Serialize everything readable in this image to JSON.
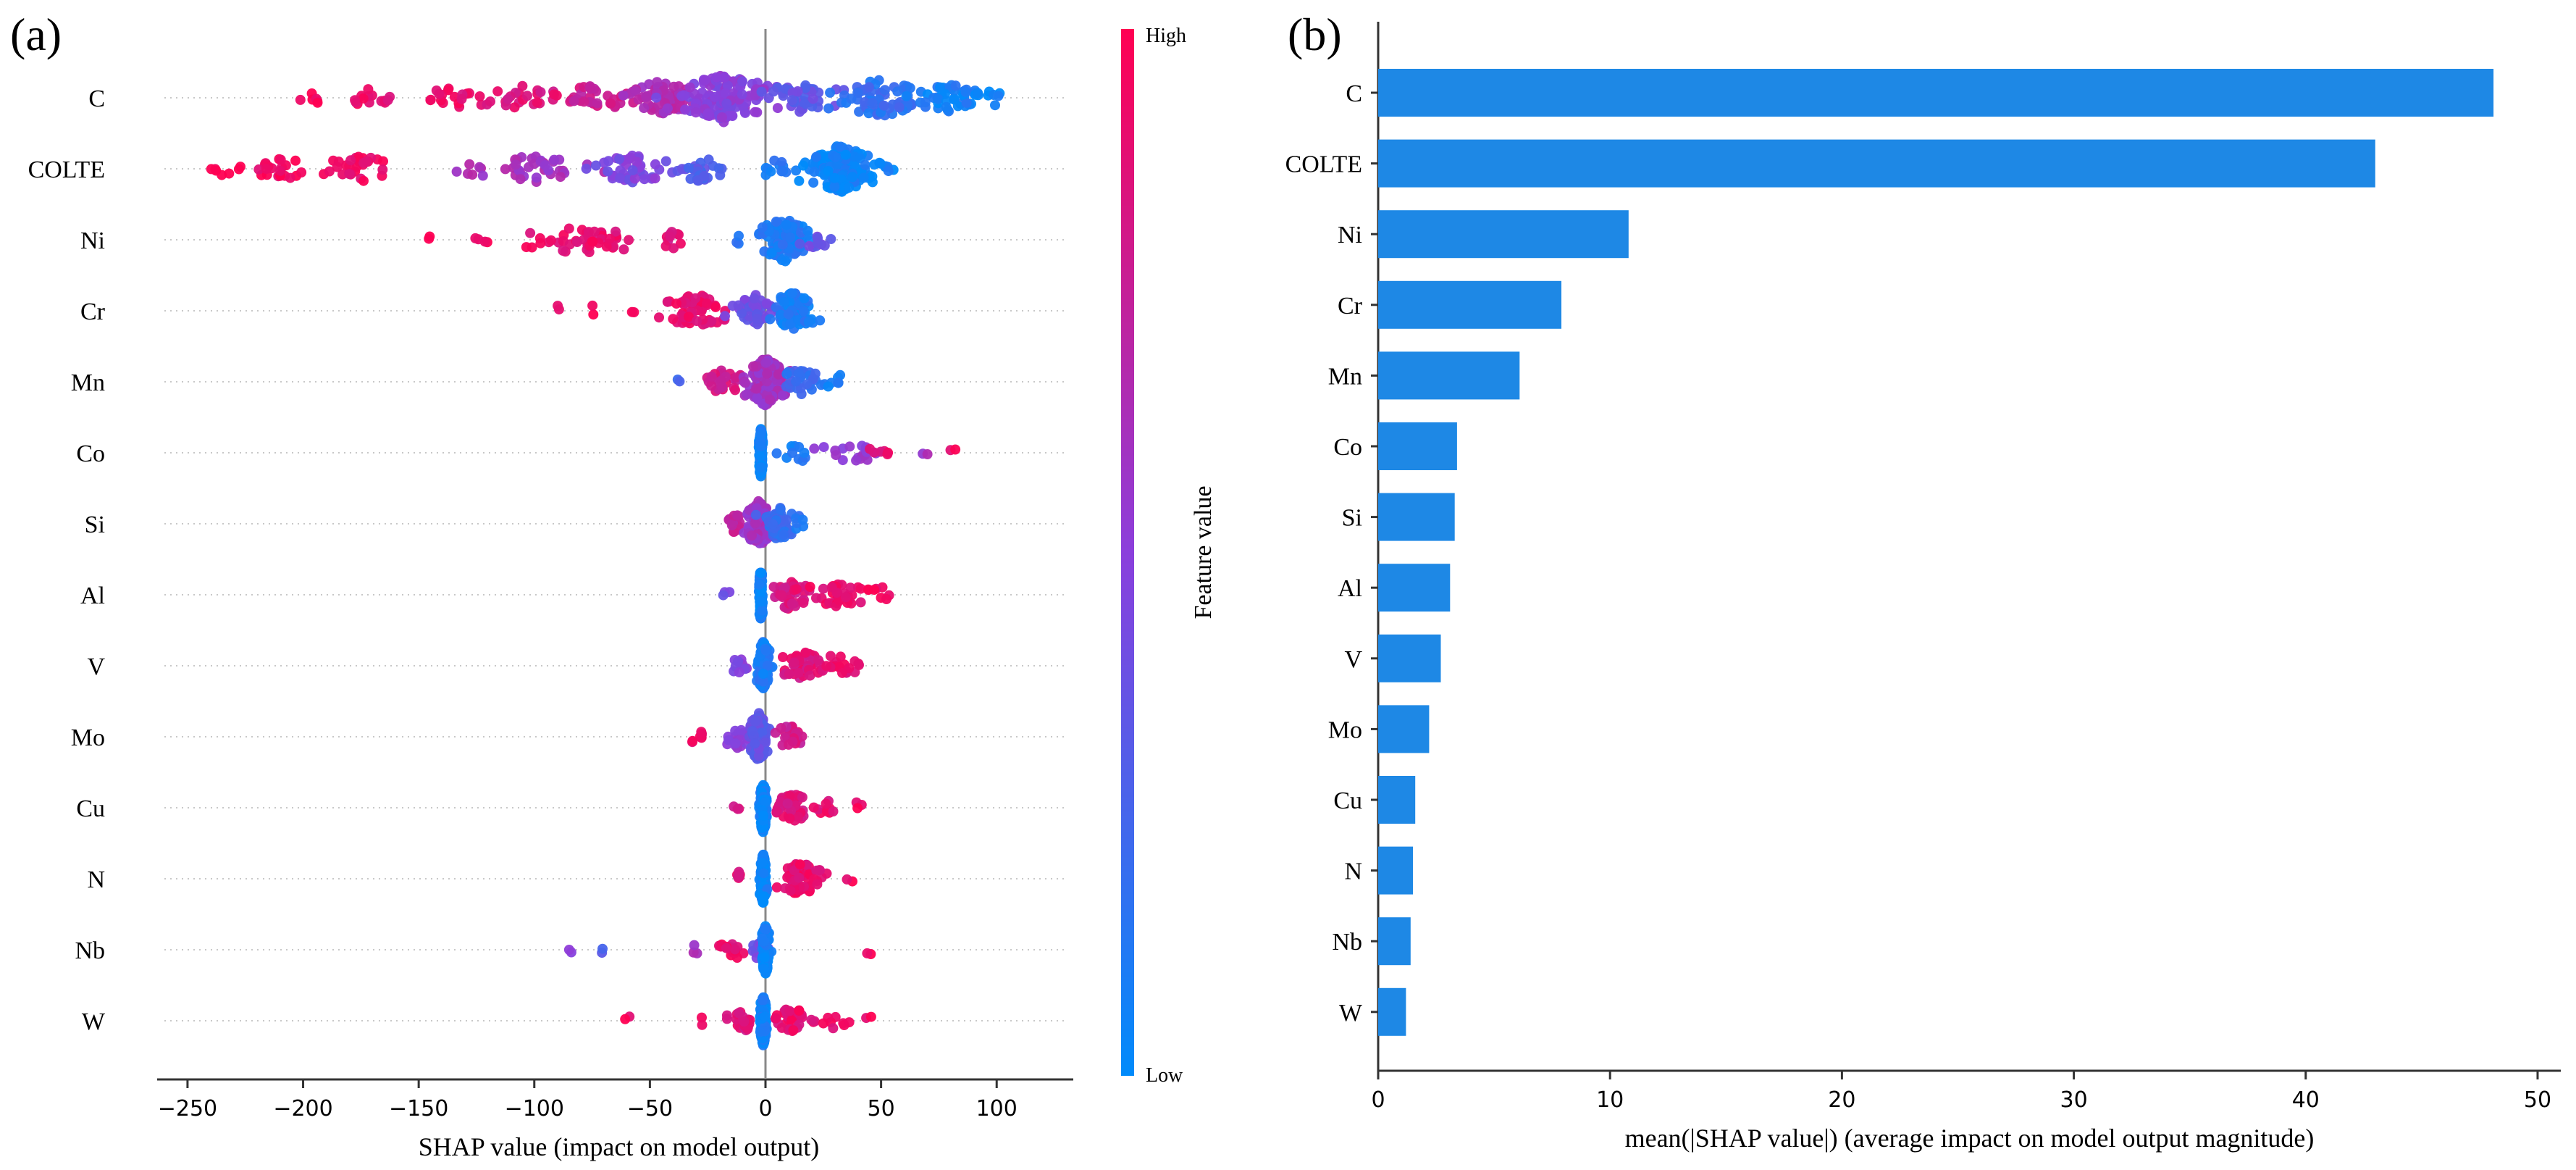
{
  "panels": {
    "a_label": "(a)",
    "b_label": "(b)"
  },
  "colors": {
    "high": "#ff0052",
    "low": "#008bfb",
    "bar": "#1e88e5",
    "axis": "#333333",
    "grid": "#cccccc"
  },
  "chart_data": [
    {
      "type": "scatter",
      "subtype": "shap-beeswarm",
      "features": [
        "C",
        "COLTE",
        "Ni",
        "Cr",
        "Mn",
        "Co",
        "Si",
        "Al",
        "V",
        "Mo",
        "Cu",
        "N",
        "Nb",
        "W"
      ],
      "xlabel": "SHAP value (impact on model output)",
      "xlim": [
        -260,
        130
      ],
      "xticks": [
        -250,
        -200,
        -150,
        -100,
        -50,
        0,
        50,
        100
      ],
      "xtick_labels": [
        "−250",
        "−200",
        "−150",
        "−100",
        "−50",
        "0",
        "50",
        "100"
      ],
      "zero_line": 0,
      "grid": "dotted-horizontal",
      "colorbar": {
        "title": "Feature value",
        "high_label": "High",
        "low_label": "Low"
      },
      "series": [
        {
          "feature": "C",
          "clusters": [
            {
              "center": -195,
              "spread": 5,
              "n": 6,
              "fv": 0.95
            },
            {
              "center": -170,
              "spread": 10,
              "n": 14,
              "fv": 0.92
            },
            {
              "center": -135,
              "spread": 10,
              "n": 16,
              "fv": 0.9
            },
            {
              "center": -105,
              "spread": 15,
              "n": 26,
              "fv": 0.85
            },
            {
              "center": -75,
              "spread": 14,
              "n": 30,
              "fv": 0.78
            },
            {
              "center": -45,
              "spread": 12,
              "n": 60,
              "fv": 0.65
            },
            {
              "center": -18,
              "spread": 14,
              "n": 140,
              "fv": 0.5
            },
            {
              "center": 15,
              "spread": 14,
              "n": 40,
              "fv": 0.35
            },
            {
              "center": 50,
              "spread": 18,
              "n": 70,
              "fv": 0.18
            },
            {
              "center": 80,
              "spread": 12,
              "n": 40,
              "fv": 0.08
            },
            {
              "center": 100,
              "spread": 6,
              "n": 8,
              "fv": 0.03
            }
          ]
        },
        {
          "feature": "COLTE",
          "clusters": [
            {
              "center": -235,
              "spread": 5,
              "n": 6,
              "fv": 0.98
            },
            {
              "center": -210,
              "spread": 10,
              "n": 22,
              "fv": 0.95
            },
            {
              "center": -175,
              "spread": 12,
              "n": 30,
              "fv": 0.93
            },
            {
              "center": -130,
              "spread": 8,
              "n": 6,
              "fv": 0.65
            },
            {
              "center": -100,
              "spread": 16,
              "n": 34,
              "fv": 0.6
            },
            {
              "center": -60,
              "spread": 14,
              "n": 44,
              "fv": 0.45
            },
            {
              "center": -28,
              "spread": 8,
              "n": 30,
              "fv": 0.3
            },
            {
              "center": 5,
              "spread": 8,
              "n": 12,
              "fv": 0.12
            },
            {
              "center": 32,
              "spread": 10,
              "n": 160,
              "fv": 0.05
            },
            {
              "center": 50,
              "spread": 4,
              "n": 8,
              "fv": 0.04
            }
          ]
        },
        {
          "feature": "Ni",
          "clusters": [
            {
              "center": -145,
              "spread": 2,
              "n": 2,
              "fv": 0.95
            },
            {
              "center": -122,
              "spread": 3,
              "n": 4,
              "fv": 0.95
            },
            {
              "center": -80,
              "spread": 18,
              "n": 45,
              "fv": 0.9
            },
            {
              "center": -40,
              "spread": 4,
              "n": 10,
              "fv": 0.85
            },
            {
              "center": -12,
              "spread": 3,
              "n": 3,
              "fv": 0.1
            },
            {
              "center": 8,
              "spread": 8,
              "n": 110,
              "fv": 0.1
            },
            {
              "center": 22,
              "spread": 4,
              "n": 10,
              "fv": 0.4
            }
          ]
        },
        {
          "feature": "Cr",
          "clusters": [
            {
              "center": -90,
              "spread": 2,
              "n": 2,
              "fv": 0.95
            },
            {
              "center": -75,
              "spread": 2,
              "n": 2,
              "fv": 0.95
            },
            {
              "center": -58,
              "spread": 2,
              "n": 2,
              "fv": 0.95
            },
            {
              "center": -30,
              "spread": 12,
              "n": 55,
              "fv": 0.9
            },
            {
              "center": -4,
              "spread": 6,
              "n": 50,
              "fv": 0.4
            },
            {
              "center": 12,
              "spread": 7,
              "n": 80,
              "fv": 0.1
            }
          ]
        },
        {
          "feature": "Mn",
          "clusters": [
            {
              "center": -38,
              "spread": 2,
              "n": 2,
              "fv": 0.2
            },
            {
              "center": -18,
              "spread": 6,
              "n": 26,
              "fv": 0.8
            },
            {
              "center": 0,
              "spread": 6,
              "n": 170,
              "fv": 0.6
            },
            {
              "center": 15,
              "spread": 8,
              "n": 30,
              "fv": 0.2
            },
            {
              "center": 32,
              "spread": 6,
              "n": 6,
              "fv": 0.05
            }
          ]
        },
        {
          "feature": "Co",
          "clusters": [
            {
              "center": -2,
              "spread": 0.5,
              "n": 200,
              "fv": 0.05
            },
            {
              "center": 15,
              "spread": 7,
              "n": 10,
              "fv": 0.1
            },
            {
              "center": 37,
              "spread": 8,
              "n": 18,
              "fv": 0.55
            },
            {
              "center": 50,
              "spread": 4,
              "n": 6,
              "fv": 0.9
            },
            {
              "center": 70,
              "spread": 2,
              "n": 2,
              "fv": 0.6
            },
            {
              "center": 80,
              "spread": 2,
              "n": 2,
              "fv": 0.95
            }
          ]
        },
        {
          "feature": "Si",
          "clusters": [
            {
              "center": -13,
              "spread": 3,
              "n": 14,
              "fv": 0.75
            },
            {
              "center": -3,
              "spread": 4,
              "n": 120,
              "fv": 0.6
            },
            {
              "center": 6,
              "spread": 5,
              "n": 60,
              "fv": 0.2
            },
            {
              "center": 15,
              "spread": 3,
              "n": 5,
              "fv": 0.1
            }
          ]
        },
        {
          "feature": "Al",
          "clusters": [
            {
              "center": -16,
              "spread": 3,
              "n": 3,
              "fv": 0.4
            },
            {
              "center": -2,
              "spread": 0.5,
              "n": 200,
              "fv": 0.05
            },
            {
              "center": 10,
              "spread": 6,
              "n": 40,
              "fv": 0.85
            },
            {
              "center": 30,
              "spread": 9,
              "n": 30,
              "fv": 0.9
            },
            {
              "center": 50,
              "spread": 6,
              "n": 8,
              "fv": 0.95
            }
          ]
        },
        {
          "feature": "V",
          "clusters": [
            {
              "center": -10,
              "spread": 3,
              "n": 10,
              "fv": 0.5
            },
            {
              "center": -1,
              "spread": 2,
              "n": 150,
              "fv": 0.1
            },
            {
              "center": 15,
              "spread": 6,
              "n": 50,
              "fv": 0.85
            },
            {
              "center": 30,
              "spread": 6,
              "n": 22,
              "fv": 0.9
            },
            {
              "center": 42,
              "spread": 2,
              "n": 2,
              "fv": 0.95
            }
          ]
        },
        {
          "feature": "Mo",
          "clusters": [
            {
              "center": -28,
              "spread": 4,
              "n": 8,
              "fv": 0.95
            },
            {
              "center": -12,
              "spread": 5,
              "n": 20,
              "fv": 0.5
            },
            {
              "center": -3,
              "spread": 3,
              "n": 150,
              "fv": 0.35
            },
            {
              "center": 10,
              "spread": 4,
              "n": 25,
              "fv": 0.8
            }
          ]
        },
        {
          "feature": "Cu",
          "clusters": [
            {
              "center": -12,
              "spread": 2,
              "n": 3,
              "fv": 0.8
            },
            {
              "center": -1,
              "spread": 1,
              "n": 200,
              "fv": 0.05
            },
            {
              "center": 12,
              "spread": 6,
              "n": 40,
              "fv": 0.85
            },
            {
              "center": 27,
              "spread": 5,
              "n": 10,
              "fv": 0.9
            },
            {
              "center": 40,
              "spread": 3,
              "n": 3,
              "fv": 0.95
            }
          ]
        },
        {
          "feature": "N",
          "clusters": [
            {
              "center": -12,
              "spread": 3,
              "n": 6,
              "fv": 0.85
            },
            {
              "center": -1,
              "spread": 1,
              "n": 200,
              "fv": 0.05
            },
            {
              "center": 15,
              "spread": 6,
              "n": 60,
              "fv": 0.9
            },
            {
              "center": 37,
              "spread": 2,
              "n": 2,
              "fv": 0.95
            }
          ]
        },
        {
          "feature": "Nb",
          "clusters": [
            {
              "center": -85,
              "spread": 2,
              "n": 2,
              "fv": 0.5
            },
            {
              "center": -70,
              "spread": 2,
              "n": 2,
              "fv": 0.3
            },
            {
              "center": -30,
              "spread": 2,
              "n": 3,
              "fv": 0.6
            },
            {
              "center": -15,
              "spread": 4,
              "n": 18,
              "fv": 0.9
            },
            {
              "center": -3,
              "spread": 3,
              "n": 12,
              "fv": 0.4
            },
            {
              "center": 0,
              "spread": 1,
              "n": 200,
              "fv": 0.05
            },
            {
              "center": 45,
              "spread": 2,
              "n": 2,
              "fv": 0.95
            }
          ]
        },
        {
          "feature": "W",
          "clusters": [
            {
              "center": -58,
              "spread": 2,
              "n": 2,
              "fv": 0.95
            },
            {
              "center": -28,
              "spread": 2,
              "n": 2,
              "fv": 0.95
            },
            {
              "center": -10,
              "spread": 4,
              "n": 20,
              "fv": 0.85
            },
            {
              "center": -1,
              "spread": 1,
              "n": 200,
              "fv": 0.05
            },
            {
              "center": 12,
              "spread": 6,
              "n": 40,
              "fv": 0.9
            },
            {
              "center": 30,
              "spread": 5,
              "n": 8,
              "fv": 0.9
            },
            {
              "center": 45,
              "spread": 2,
              "n": 2,
              "fv": 0.95
            }
          ]
        }
      ]
    },
    {
      "type": "bar",
      "orientation": "horizontal",
      "categories": [
        "C",
        "COLTE",
        "Ni",
        "Cr",
        "Mn",
        "Co",
        "Si",
        "Al",
        "V",
        "Mo",
        "Cu",
        "N",
        "Nb",
        "W"
      ],
      "values": [
        48.1,
        43.0,
        10.8,
        7.9,
        6.1,
        3.4,
        3.3,
        3.1,
        2.7,
        2.2,
        1.6,
        1.5,
        1.4,
        1.2
      ],
      "xlabel": "mean(|SHAP value|) (average impact on model output magnitude)",
      "xlim": [
        0,
        51
      ],
      "xticks": [
        0,
        10,
        20,
        30,
        40,
        50
      ],
      "xtick_labels": [
        "0",
        "10",
        "20",
        "30",
        "40",
        "50"
      ]
    }
  ]
}
